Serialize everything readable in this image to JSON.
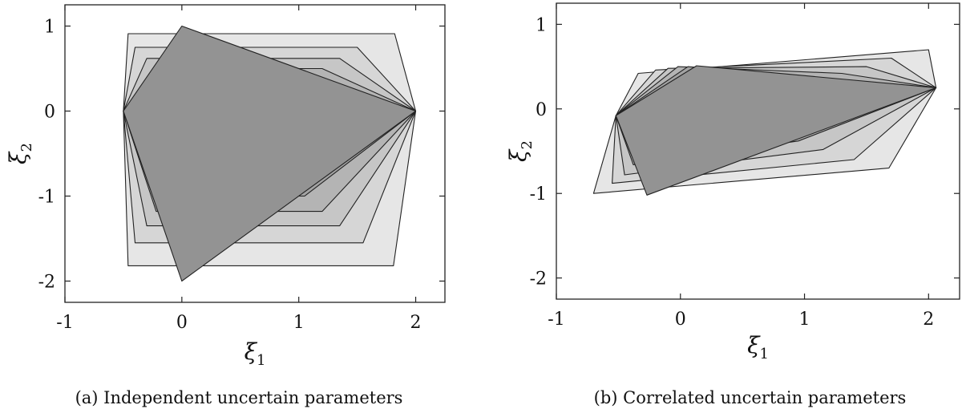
{
  "chart_data": [
    {
      "type": "area",
      "caption": "(a) Independent uncertain parameters",
      "xlabel": "ξ",
      "xlabel_sub": "1",
      "ylabel": "ξ",
      "ylabel_sub": "2",
      "xlim": [
        -1,
        2.25
      ],
      "ylim": [
        -2.25,
        1.25
      ],
      "xticks": [
        -1,
        0,
        1,
        2
      ],
      "xtick_labels": [
        "-1",
        "0",
        "1",
        "2"
      ],
      "yticks": [
        -2,
        -1,
        0,
        1
      ],
      "ytick_labels": [
        "-2",
        "-1",
        "0",
        "1"
      ],
      "grid": false,
      "fills": [
        "#e6e6e6",
        "#d6d6d6",
        "#c6c6c6",
        "#b4b4b4",
        "#a3a3a3",
        "#939393"
      ],
      "series": [
        {
          "points": [
            [
              -0.46,
              0.91
            ],
            [
              1.82,
              0.91
            ],
            [
              2,
              0
            ],
            [
              1.81,
              -1.82
            ],
            [
              -0.46,
              -1.82
            ],
            [
              -0.5,
              0
            ]
          ]
        },
        {
          "points": [
            [
              -0.4,
              0.75
            ],
            [
              1.5,
              0.75
            ],
            [
              2,
              0
            ],
            [
              1.55,
              -1.55
            ],
            [
              -0.4,
              -1.55
            ],
            [
              -0.5,
              0
            ]
          ]
        },
        {
          "points": [
            [
              -0.3,
              0.62
            ],
            [
              1.35,
              0.62
            ],
            [
              2,
              0
            ],
            [
              1.35,
              -1.35
            ],
            [
              -0.3,
              -1.35
            ],
            [
              -0.5,
              0
            ]
          ]
        },
        {
          "points": [
            [
              -0.22,
              0.5
            ],
            [
              1.2,
              0.5
            ],
            [
              2,
              0
            ],
            [
              1.2,
              -1.18
            ],
            [
              -0.22,
              -1.18
            ],
            [
              -0.5,
              0
            ]
          ]
        },
        {
          "points": [
            [
              -0.12,
              0.3
            ],
            [
              1.05,
              0.3
            ],
            [
              2,
              0
            ],
            [
              1.05,
              -1.0
            ],
            [
              -0.12,
              -1.0
            ],
            [
              -0.5,
              0
            ]
          ]
        },
        {
          "points": [
            [
              0,
              1
            ],
            [
              2,
              0
            ],
            [
              0,
              -2
            ],
            [
              -0.5,
              0
            ]
          ]
        }
      ]
    },
    {
      "type": "area",
      "caption": "(b) Correlated uncertain parameters",
      "xlabel": "ξ",
      "xlabel_sub": "1",
      "ylabel": "ξ",
      "ylabel_sub": "2",
      "xlim": [
        -1,
        2.25
      ],
      "ylim": [
        -2.25,
        1.25
      ],
      "xticks": [
        -1,
        0,
        1,
        2
      ],
      "xtick_labels": [
        "-1",
        "0",
        "1",
        "2"
      ],
      "yticks": [
        -2,
        -1,
        0,
        1
      ],
      "ytick_labels": [
        "-2",
        "-1",
        "0",
        "1"
      ],
      "grid": false,
      "fills": [
        "#e6e6e6",
        "#d6d6d6",
        "#c6c6c6",
        "#b4b4b4",
        "#a3a3a3",
        "#939393"
      ],
      "series": [
        {
          "points": [
            [
              -0.34,
              0.42
            ],
            [
              2.0,
              0.7
            ],
            [
              2.06,
              0.25
            ],
            [
              1.68,
              -0.7
            ],
            [
              -0.7,
              -1.0
            ],
            [
              -0.52,
              -0.08
            ]
          ]
        },
        {
          "points": [
            [
              -0.2,
              0.46
            ],
            [
              1.7,
              0.6
            ],
            [
              2.06,
              0.25
            ],
            [
              1.4,
              -0.6
            ],
            [
              -0.55,
              -0.88
            ],
            [
              -0.52,
              -0.08
            ]
          ]
        },
        {
          "points": [
            [
              -0.1,
              0.48
            ],
            [
              1.5,
              0.5
            ],
            [
              2.06,
              0.25
            ],
            [
              1.15,
              -0.48
            ],
            [
              -0.45,
              -0.78
            ],
            [
              -0.52,
              -0.08
            ]
          ]
        },
        {
          "points": [
            [
              -0.02,
              0.5
            ],
            [
              1.3,
              0.42
            ],
            [
              2.06,
              0.25
            ],
            [
              0.95,
              -0.38
            ],
            [
              -0.38,
              -0.66
            ],
            [
              -0.52,
              -0.08
            ]
          ]
        },
        {
          "points": [
            [
              0.06,
              0.5
            ],
            [
              1.15,
              0.36
            ],
            [
              2.06,
              0.25
            ],
            [
              0.8,
              -0.3
            ],
            [
              -0.33,
              -0.55
            ],
            [
              -0.52,
              -0.08
            ]
          ]
        },
        {
          "points": [
            [
              0.13,
              0.51
            ],
            [
              2.06,
              0.25
            ],
            [
              -0.27,
              -1.02
            ],
            [
              -0.52,
              -0.08
            ]
          ]
        }
      ]
    }
  ]
}
